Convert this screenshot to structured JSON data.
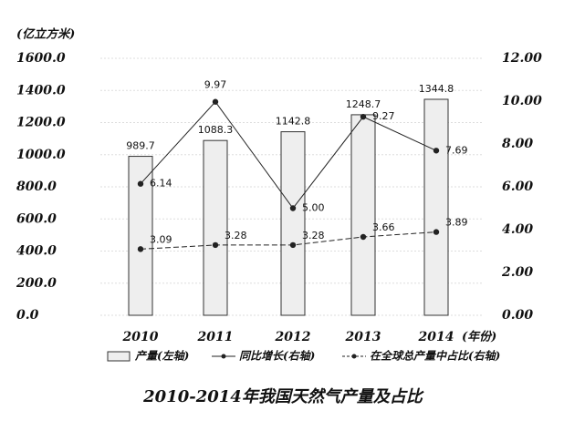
{
  "chart_data": {
    "type": "bar",
    "title": "2010-2014年我国天然气产量及占比",
    "y_label": "(亿立方米)",
    "x_label": "(年份)",
    "categories": [
      "2010",
      "2011",
      "2012",
      "2013",
      "2014"
    ],
    "series": [
      {
        "name": "产量(左轴)",
        "type": "bar",
        "color": "#eeeeee",
        "values": [
          989.7,
          1088.3,
          1142.8,
          1248.7,
          1344.8
        ]
      },
      {
        "name": "同比增长(右轴)",
        "type": "line",
        "style": "solid",
        "axis": "y2",
        "color": "#222222",
        "values": [
          6.14,
          9.97,
          5.0,
          9.27,
          7.69
        ],
        "value_labels": [
          "6.14",
          "9.97",
          "5.00",
          "9.27",
          "7.69"
        ]
      },
      {
        "name": "在全球总产量中占比(右轴)",
        "type": "line",
        "style": "dashed",
        "axis": "y2",
        "color": "#222222",
        "values": [
          3.09,
          3.28,
          3.28,
          3.66,
          3.89
        ]
      }
    ],
    "ylim": [
      0,
      1600
    ],
    "yticks": [
      {
        "value": 0,
        "label": "0.0"
      },
      {
        "value": 200,
        "label": "200.0"
      },
      {
        "value": 400,
        "label": "400.0"
      },
      {
        "value": 600,
        "label": "600.0"
      },
      {
        "value": 800,
        "label": "800.0"
      },
      {
        "value": 1000,
        "label": "1000.0"
      },
      {
        "value": 1200,
        "label": "1200.0"
      },
      {
        "value": 1400,
        "label": "1400.0"
      },
      {
        "value": 1600,
        "label": "1600.0"
      }
    ],
    "y2lim": [
      0,
      12
    ],
    "y2ticks": [
      {
        "value": 0,
        "label": "0.00"
      },
      {
        "value": 2,
        "label": "2.00"
      },
      {
        "value": 4,
        "label": "4.00"
      },
      {
        "value": 6,
        "label": "6.00"
      },
      {
        "value": 8,
        "label": "8.00"
      },
      {
        "value": 10,
        "label": "10.00"
      },
      {
        "value": 12,
        "label": "12.00"
      }
    ],
    "grid": true
  }
}
